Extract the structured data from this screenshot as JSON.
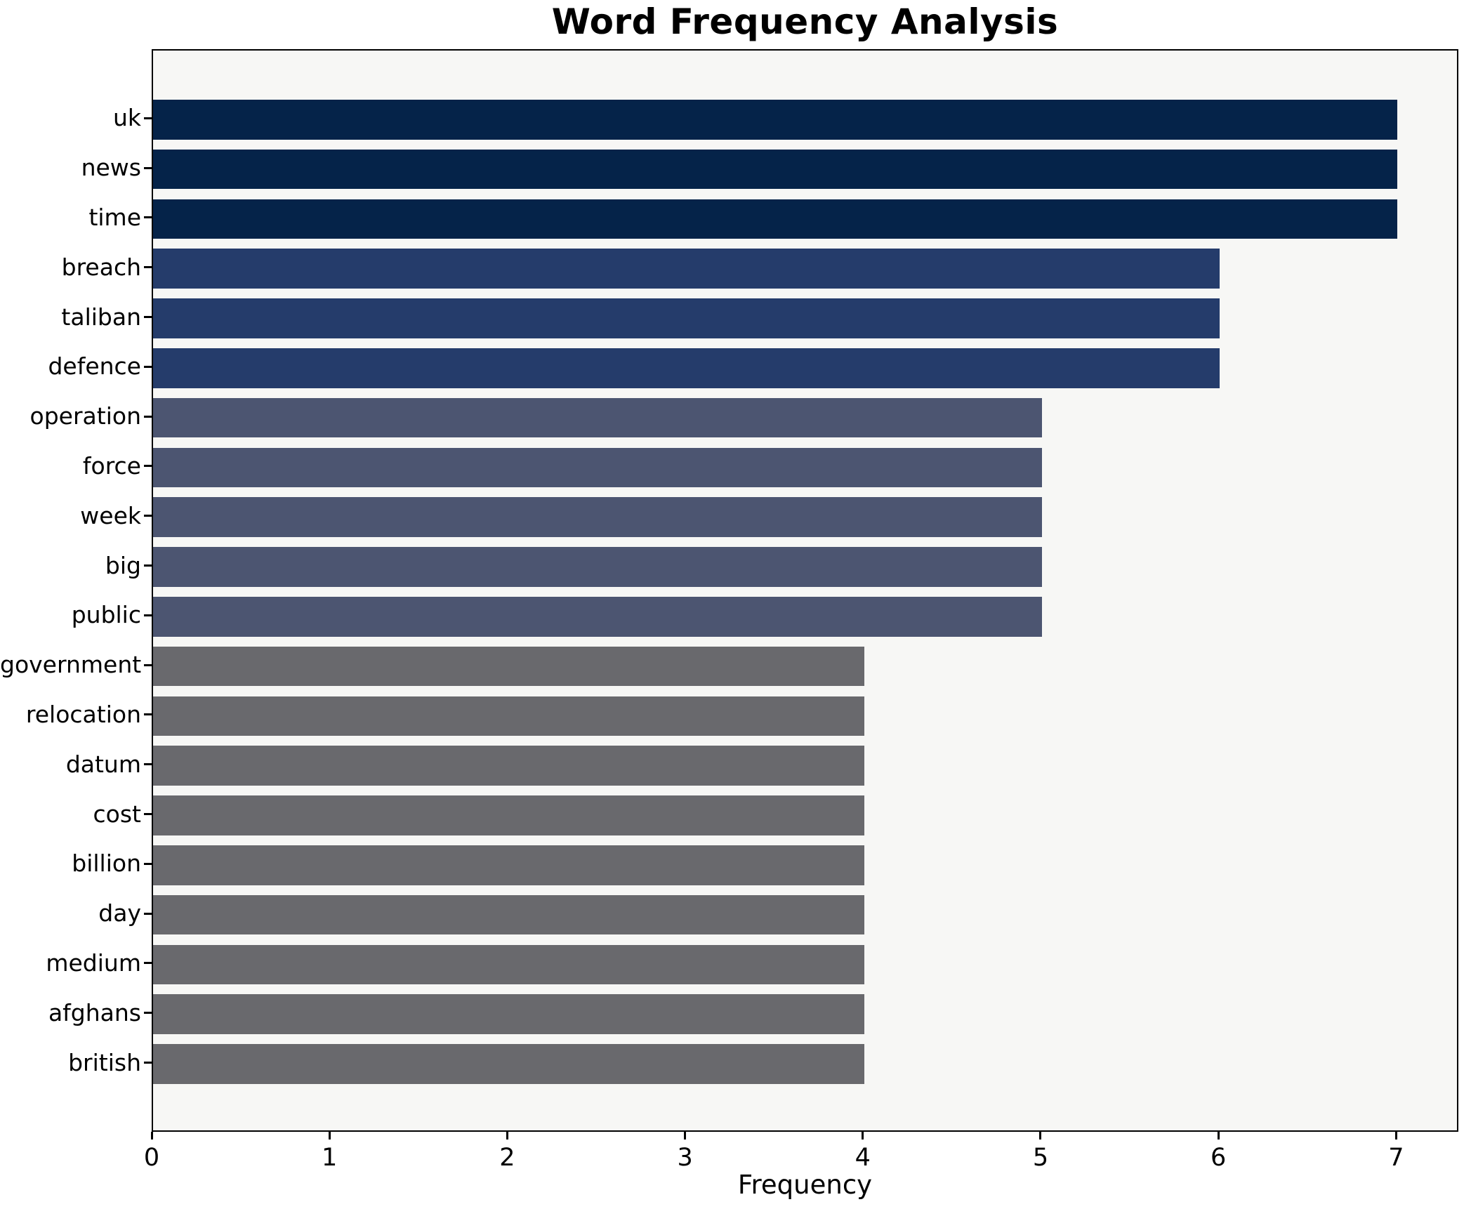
{
  "figure": {
    "background": "#ffffff",
    "plot_background": "#f7f7f5",
    "spine_color": "#000000"
  },
  "chart_data": {
    "type": "bar",
    "orientation": "horizontal",
    "title": "Word Frequency Analysis",
    "xlabel": "Frequency",
    "ylabel": "",
    "categories": [
      "uk",
      "news",
      "time",
      "breach",
      "taliban",
      "defence",
      "operation",
      "force",
      "week",
      "big",
      "public",
      "government",
      "relocation",
      "datum",
      "cost",
      "billion",
      "day",
      "medium",
      "afghans",
      "british"
    ],
    "values": [
      7,
      7,
      7,
      6,
      6,
      6,
      5,
      5,
      5,
      5,
      5,
      4,
      4,
      4,
      4,
      4,
      4,
      4,
      4,
      4
    ],
    "xticks": [
      0,
      1,
      2,
      3,
      4,
      5,
      6,
      7
    ],
    "xlim": [
      0,
      7.35
    ],
    "grid": false,
    "legend": false,
    "value_colors": {
      "7": "#052349",
      "6": "#253c6b",
      "5": "#4c5571",
      "4": "#69696d"
    }
  }
}
